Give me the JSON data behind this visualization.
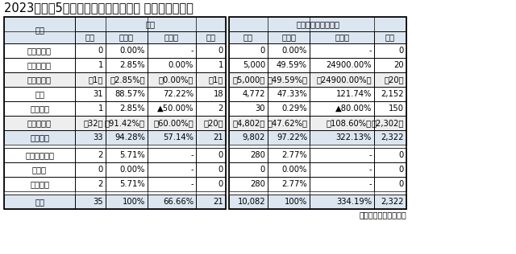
{
  "title": "2023（令和5）年自動車部品メーカー 形態別倒産状況",
  "source": "東京商工リサーチ調べ",
  "header_col": "形態",
  "header_kensu": "件数",
  "header_fusai": "負債総額（百万円）",
  "sub_headers": [
    "当年",
    "構成比",
    "前年比",
    "前年"
  ],
  "rows": [
    [
      "会社更生法",
      "0",
      "0.00%",
      "-",
      "0",
      "0",
      "0.00%",
      "-",
      "0"
    ],
    [
      "民事再生法",
      "1",
      "2.85%",
      "0.00%",
      "1",
      "5,000",
      "49.59%",
      "24900.00%",
      "20"
    ],
    [
      "（再建型）",
      "（1）",
      "（2.85%）",
      "（0.00%）",
      "（1）",
      "（5,000）",
      "（49.59%）",
      "（24900.00%）",
      "（20）"
    ],
    [
      "破産",
      "31",
      "88.57%",
      "72.22%",
      "18",
      "4,772",
      "47.33%",
      "121.74%",
      "2,152"
    ],
    [
      "特別清算",
      "1",
      "2.85%",
      "▲50.00%",
      "2",
      "30",
      "0.29%",
      "▲80.00%",
      "150"
    ],
    [
      "（消滅型）",
      "（32）",
      "（91.42%）",
      "（60.00%）",
      "（20）",
      "（4,802）",
      "（47.62%）",
      "（108.60%）",
      "（2,302）"
    ],
    [
      "法的倒産",
      "33",
      "94.28%",
      "57.14%",
      "21",
      "9,802",
      "97.22%",
      "322.13%",
      "2,322"
    ],
    [
      "取引停止処分",
      "2",
      "5.71%",
      "-",
      "0",
      "280",
      "2.77%",
      "-",
      "0"
    ],
    [
      "内整理",
      "0",
      "0.00%",
      "-",
      "0",
      "0",
      "0.00%",
      "-",
      "0"
    ],
    [
      "私的倒産",
      "2",
      "5.71%",
      "-",
      "0",
      "280",
      "2.77%",
      "-",
      "0"
    ],
    [
      "合計",
      "35",
      "100%",
      "66.66%",
      "21",
      "10,082",
      "100%",
      "334.19%",
      "2,322"
    ]
  ],
  "row_bg": [
    "#ffffff",
    "#ffffff",
    "#eeeeee",
    "#ffffff",
    "#ffffff",
    "#eeeeee",
    "#dce6f1",
    "#ffffff",
    "#ffffff",
    "#ffffff",
    "#dce6f1"
  ],
  "bg_header": "#dce6f1",
  "bg_white": "#ffffff",
  "border_dark": "#000000",
  "border_light": "#aaaaaa",
  "title_fontsize": 10.5,
  "cell_fontsize": 7.2
}
